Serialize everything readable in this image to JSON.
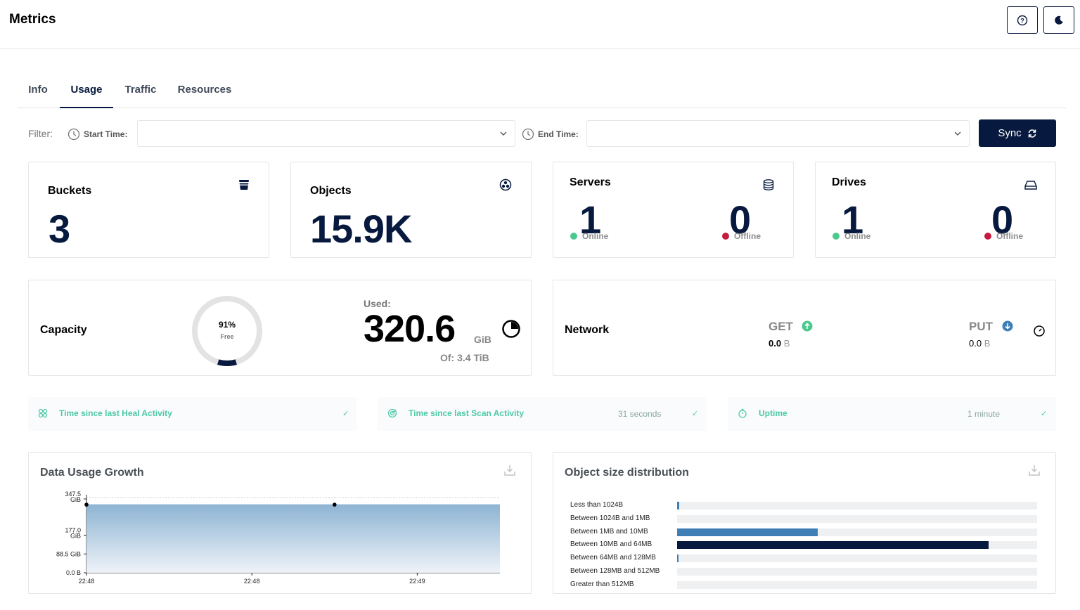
{
  "header": {
    "title": "Metrics",
    "help_icon": "question-circle-icon",
    "theme_icon": "moon-icon"
  },
  "tabs": [
    {
      "label": "Info"
    },
    {
      "label": "Usage"
    },
    {
      "label": "Traffic"
    },
    {
      "label": "Resources"
    }
  ],
  "active_tab": "Usage",
  "filter": {
    "label": "Filter:",
    "start_label": "Start Time:",
    "start_value": "",
    "end_label": "End Time:",
    "end_value": "",
    "sync_label": "Sync"
  },
  "stats": {
    "buckets": {
      "title": "Buckets",
      "value": "3",
      "icon": "bucket-icon"
    },
    "objects": {
      "title": "Objects",
      "value": "15.9K",
      "icon": "objects-icon"
    },
    "servers": {
      "title": "Servers",
      "online": "1",
      "online_label": "Online",
      "offline": "0",
      "offline_label": "Offline",
      "icon": "server-icon"
    },
    "drives": {
      "title": "Drives",
      "online": "1",
      "online_label": "Online",
      "offline": "0",
      "offline_label": "Offline",
      "icon": "drive-icon"
    }
  },
  "capacity": {
    "title": "Capacity",
    "free_percent": "91%",
    "free_label": "Free",
    "used_fraction": 0.09,
    "used_label": "Used:",
    "used_value": "320.6",
    "used_unit": "GiB",
    "of_label": "Of: 3.4 TiB"
  },
  "network": {
    "title": "Network",
    "get_label": "GET",
    "get_value": "0.0",
    "get_unit": "B",
    "put_label": "PUT",
    "put_value": "0.0",
    "put_unit": "B"
  },
  "activity": [
    {
      "label": "Time since last Heal Activity",
      "value": ""
    },
    {
      "label": "Time since last Scan Activity",
      "value": "31 seconds"
    },
    {
      "label": "Uptime",
      "value": "1 minute"
    }
  ],
  "colors": {
    "primary": "#07193e",
    "online": "#4cc98e",
    "offline": "#c51b3f",
    "accent": "#4cc9a6",
    "bar_mid": "#3f7fb5"
  },
  "chart_data": [
    {
      "type": "area",
      "title": "Data Usage Growth",
      "x": [
        "22:48",
        "22:48",
        "22:49"
      ],
      "y_ticks": [
        "0.0 B",
        "88.5 GiB",
        "177.0 GiB",
        "347.5 GiB"
      ],
      "ylim": [
        0,
        354
      ],
      "points": [
        {
          "x": 0.0,
          "y": 320.6
        },
        {
          "x": 0.6,
          "y": 320.6
        },
        {
          "x": 1.0,
          "y": 320.6
        }
      ],
      "marked_points": [
        0,
        1
      ]
    },
    {
      "type": "bar",
      "title": "Object size distribution",
      "categories": [
        "Less than 1024B",
        "Between 1024B and 1MB",
        "Between 1MB and 10MB",
        "Between 10MB and 64MB",
        "Between 64MB and 128MB",
        "Between 128MB and 512MB",
        "Greater than 512MB"
      ],
      "values": [
        0.6,
        0,
        39,
        86.5,
        0.2,
        0,
        0
      ],
      "units": "percent of track"
    }
  ]
}
